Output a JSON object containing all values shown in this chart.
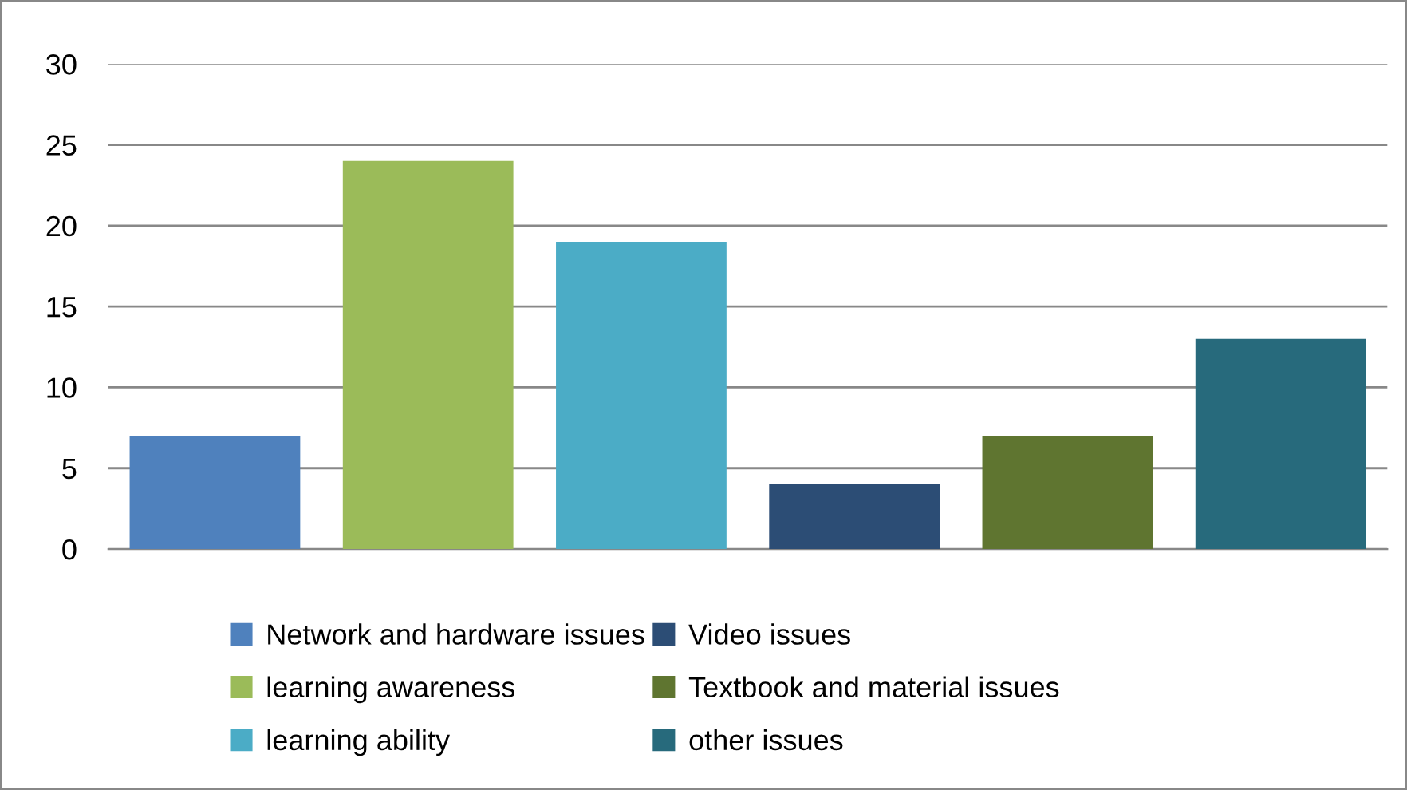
{
  "chart_data": {
    "type": "bar",
    "categories": [
      null,
      null,
      null,
      null,
      null,
      null
    ],
    "series": [
      {
        "name": "Network and hardware issues",
        "color": "#4f81bd",
        "values": [
          7,
          null,
          null,
          null,
          null,
          null
        ]
      },
      {
        "name": "learning awareness",
        "color": "#9bbb59",
        "values": [
          null,
          24,
          null,
          null,
          null,
          null
        ]
      },
      {
        "name": "learning ability",
        "color": "#4bacc6",
        "values": [
          null,
          null,
          19,
          null,
          null,
          null
        ]
      },
      {
        "name": "Video issues",
        "color": "#2c4d75",
        "values": [
          null,
          null,
          null,
          4,
          null,
          null
        ]
      },
      {
        "name": "Textbook and material issues",
        "color": "#5f7530",
        "values": [
          null,
          null,
          null,
          null,
          7,
          null
        ]
      },
      {
        "name": "other issues",
        "color": "#276a7c",
        "values": [
          null,
          null,
          null,
          null,
          null,
          13
        ]
      }
    ],
    "ylim": [
      0,
      30
    ],
    "yticks": [
      0,
      5,
      10,
      15,
      20,
      25,
      30
    ],
    "grid": "y",
    "legend": "bottom"
  }
}
